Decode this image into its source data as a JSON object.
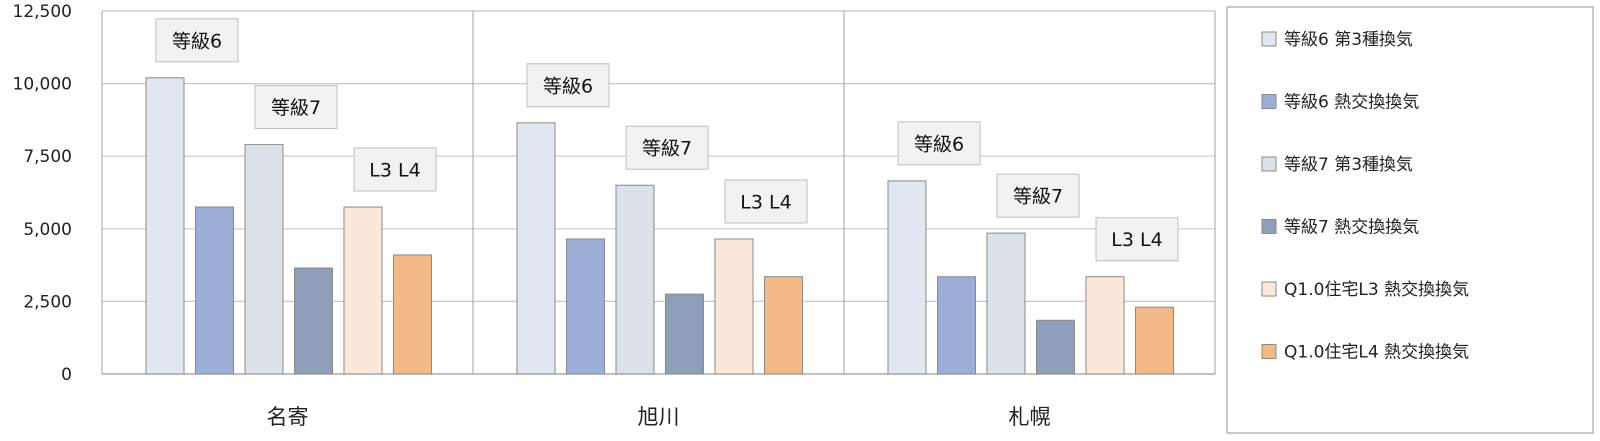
{
  "chart_data": {
    "type": "bar",
    "categories": [
      "名寄",
      "旭川",
      "札幌"
    ],
    "ylim": [
      0,
      12500
    ],
    "yticks": [
      0,
      2500,
      5000,
      7500,
      10000,
      12500
    ],
    "ytick_labels": [
      "0",
      "2,500",
      "5,000",
      "7,500",
      "10,000",
      "12,500"
    ],
    "grid": true,
    "legend_position": "right",
    "series": [
      {
        "name": "等級6 第3種換気",
        "color": "#e1e6f1",
        "values": [
          10200,
          8650,
          6650
        ]
      },
      {
        "name": "等級6 熱交換換気",
        "color": "#9cadd7",
        "values": [
          5750,
          4650,
          3350
        ]
      },
      {
        "name": "等級7 第3種換気",
        "color": "#dde1ea",
        "values": [
          7900,
          6500,
          4850
        ]
      },
      {
        "name": "等級7 熱交換換気",
        "color": "#8f9fb9",
        "values": [
          3650,
          2750,
          1850
        ]
      },
      {
        "name": "Q1.0住宅L3 熱交換換気",
        "color": "#fce8da",
        "values": [
          5750,
          4650,
          3350
        ]
      },
      {
        "name": "Q1.0住宅L4 熱交換換気",
        "color": "#f3b986",
        "values": [
          4100,
          3350,
          2300
        ]
      }
    ],
    "annotations": [
      {
        "category": 0,
        "series": 0,
        "text": "等級6"
      },
      {
        "category": 0,
        "series": 2,
        "text": "等級7"
      },
      {
        "category": 0,
        "series": 4,
        "text": "L3 L4"
      },
      {
        "category": 1,
        "series": 0,
        "text": "等級6"
      },
      {
        "category": 1,
        "series": 2,
        "text": "等級7"
      },
      {
        "category": 1,
        "series": 4,
        "text": "L3 L4"
      },
      {
        "category": 2,
        "series": 0,
        "text": "等級6"
      },
      {
        "category": 2,
        "series": 2,
        "text": "等級7"
      },
      {
        "category": 2,
        "series": 4,
        "text": "L3 L4"
      }
    ]
  }
}
